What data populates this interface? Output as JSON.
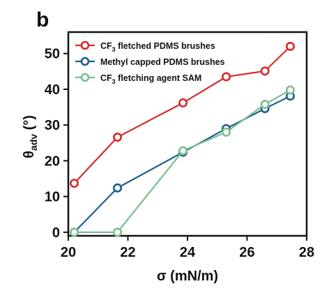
{
  "panel_label": "b",
  "colors": {
    "red": "#d62a2a",
    "blue": "#1c5e8c",
    "green": "#7bbf8f",
    "axis": "#111111"
  },
  "chart_data": {
    "type": "line",
    "xlabel": "σ (mN/m)",
    "ylabel_main": "θ",
    "ylabel_sub": "adv",
    "ylabel_unit": " (°)",
    "xlim": [
      20,
      28
    ],
    "ylim": [
      -1,
      56
    ],
    "x_ticks": [
      20,
      22,
      24,
      26,
      28
    ],
    "y_ticks": [
      0,
      10,
      20,
      30,
      40,
      50
    ],
    "grid": false,
    "legend_position": "top-left",
    "series": [
      {
        "name_prefix": "CF",
        "name_sub": "3",
        "name_suffix": " fletched PDMS brushes",
        "color": "#d62a2a",
        "x": [
          20.2,
          21.65,
          23.85,
          25.3,
          26.6,
          27.45
        ],
        "y": [
          13.7,
          26.6,
          36.2,
          43.5,
          45.1,
          52.0
        ]
      },
      {
        "name_prefix": "Methyl  capped PDMS brushes",
        "name_sub": "",
        "name_suffix": "",
        "color": "#1c5e8c",
        "x": [
          20.2,
          21.65,
          23.85,
          25.3,
          26.6,
          27.45
        ],
        "y": [
          0.0,
          12.4,
          22.4,
          29.0,
          34.6,
          38.1
        ]
      },
      {
        "name_prefix": "CF",
        "name_sub": "3",
        "name_suffix": " fletching agent SAM",
        "color": "#7bbf8f",
        "x": [
          20.2,
          21.65,
          23.85,
          25.3,
          26.6,
          27.45
        ],
        "y": [
          0.0,
          0.0,
          22.8,
          28.0,
          35.8,
          39.8
        ]
      }
    ]
  }
}
